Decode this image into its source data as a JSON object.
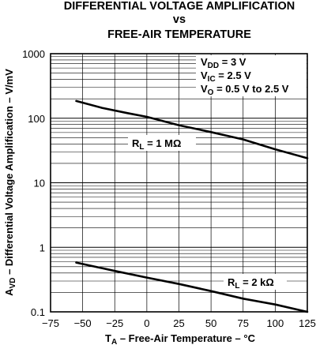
{
  "chart_data": {
    "type": "line",
    "title": {
      "line1": "DIFFERENTIAL VOLTAGE AMPLIFICATION",
      "line2": "vs",
      "line3": "FREE-AIR TEMPERATURE"
    },
    "xlabel": {
      "main": "T",
      "sub": "A",
      "rest": " – Free-Air Temperature  – °C"
    },
    "ylabel": {
      "main": "A",
      "sub": "VD",
      "rest": " – Differential Voltage Amplification – V/mV"
    },
    "xlim": [
      -75,
      125
    ],
    "ylim": [
      0.1,
      1000
    ],
    "yscale": "log",
    "grid": true,
    "x_ticks": [
      "−75",
      "−50",
      "−25",
      "0",
      "25",
      "50",
      "75",
      "100",
      "125"
    ],
    "x_tick_values": [
      -75,
      -50,
      -25,
      0,
      25,
      50,
      75,
      100,
      125
    ],
    "y_ticks": [
      "0.1",
      "1",
      "10",
      "100",
      "1000"
    ],
    "y_tick_values": [
      0.1,
      1,
      10,
      100,
      1000
    ],
    "conditions": [
      {
        "main": "V",
        "sub": "DD",
        "rest": " = 3 V"
      },
      {
        "main": "V",
        "sub": "IC",
        "rest": " = 2.5 V"
      },
      {
        "main": "V",
        "sub": "O",
        "rest": " = 0.5 V to 2.5 V"
      }
    ],
    "series": [
      {
        "label_main": "R",
        "label_sub": "L",
        "label_rest": " = 1 MΩ",
        "x": [
          -55,
          -35,
          -15,
          0,
          25,
          50,
          75,
          100,
          125
        ],
        "y": [
          185,
          145,
          120,
          105,
          78,
          61,
          47,
          33,
          24
        ]
      },
      {
        "label_main": "R",
        "label_sub": "L",
        "label_rest": " = 2 kΩ",
        "x": [
          -55,
          -25,
          0,
          25,
          50,
          75,
          100,
          125
        ],
        "y": [
          0.58,
          0.43,
          0.34,
          0.27,
          0.21,
          0.16,
          0.13,
          0.1
        ]
      }
    ]
  }
}
